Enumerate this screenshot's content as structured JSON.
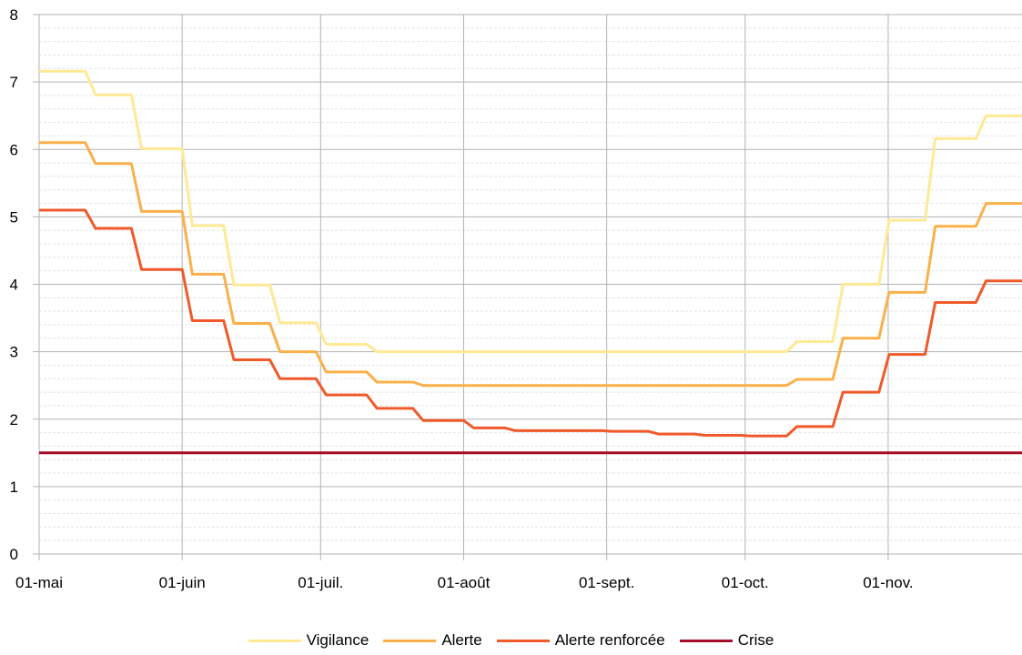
{
  "chart_data": {
    "type": "line",
    "title": "",
    "xlabel": "",
    "ylabel": "",
    "x_range": [
      "2023-05-01",
      "2023-11-30"
    ],
    "ylim": [
      0,
      8
    ],
    "y_ticks": [
      "0",
      "1",
      "2",
      "3",
      "4",
      "5",
      "6",
      "7",
      "8"
    ],
    "x_ticks": [
      {
        "date": "2023-05-01",
        "label": "01-mai"
      },
      {
        "date": "2023-06-01",
        "label": "01-juin"
      },
      {
        "date": "2023-07-01",
        "label": "01-juil."
      },
      {
        "date": "2023-08-01",
        "label": "01-août"
      },
      {
        "date": "2023-09-01",
        "label": "01-sept."
      },
      {
        "date": "2023-10-01",
        "label": "01-oct."
      },
      {
        "date": "2023-11-01",
        "label": "01-nov."
      }
    ],
    "grid": true,
    "legend_position": "bottom",
    "step_chart": true,
    "series": [
      {
        "name": "Vigilance",
        "color": "#ffe994",
        "points": [
          [
            "2023-05-01",
            7.16
          ],
          [
            "2023-05-11",
            6.81
          ],
          [
            "2023-05-21",
            6.01
          ],
          [
            "2023-06-01",
            4.87
          ],
          [
            "2023-06-10",
            3.99
          ],
          [
            "2023-06-20",
            3.43
          ],
          [
            "2023-06-30",
            3.11
          ],
          [
            "2023-07-11",
            3.0
          ],
          [
            "2023-10-10",
            3.15
          ],
          [
            "2023-10-20",
            4.0
          ],
          [
            "2023-10-30",
            4.95
          ],
          [
            "2023-11-09",
            6.16
          ],
          [
            "2023-11-20",
            6.5
          ],
          [
            "2023-11-30",
            6.5
          ]
        ]
      },
      {
        "name": "Alerte",
        "color": "#fbb04a",
        "points": [
          [
            "2023-05-01",
            6.1
          ],
          [
            "2023-05-11",
            5.79
          ],
          [
            "2023-05-21",
            5.08
          ],
          [
            "2023-06-01",
            4.15
          ],
          [
            "2023-06-10",
            3.42
          ],
          [
            "2023-06-20",
            3.0
          ],
          [
            "2023-06-30",
            2.7
          ],
          [
            "2023-07-11",
            2.55
          ],
          [
            "2023-07-21",
            2.5
          ],
          [
            "2023-10-10",
            2.59
          ],
          [
            "2023-10-20",
            3.2
          ],
          [
            "2023-10-30",
            3.88
          ],
          [
            "2023-11-09",
            4.86
          ],
          [
            "2023-11-20",
            5.2
          ],
          [
            "2023-11-30",
            5.2
          ]
        ]
      },
      {
        "name": "Alerte renforcée",
        "color": "#f05a2a",
        "points": [
          [
            "2023-05-01",
            5.1
          ],
          [
            "2023-05-11",
            4.83
          ],
          [
            "2023-05-21",
            4.22
          ],
          [
            "2023-06-01",
            3.46
          ],
          [
            "2023-06-10",
            2.88
          ],
          [
            "2023-06-20",
            2.6
          ],
          [
            "2023-06-30",
            2.36
          ],
          [
            "2023-07-11",
            2.16
          ],
          [
            "2023-07-21",
            1.98
          ],
          [
            "2023-08-01",
            1.87
          ],
          [
            "2023-08-10",
            1.83
          ],
          [
            "2023-08-31",
            1.82
          ],
          [
            "2023-09-10",
            1.78
          ],
          [
            "2023-09-20",
            1.76
          ],
          [
            "2023-09-30",
            1.75
          ],
          [
            "2023-10-10",
            1.89
          ],
          [
            "2023-10-20",
            2.4
          ],
          [
            "2023-10-30",
            2.96
          ],
          [
            "2023-11-09",
            3.73
          ],
          [
            "2023-11-20",
            4.05
          ],
          [
            "2023-11-30",
            4.05
          ]
        ]
      },
      {
        "name": "Crise",
        "color": "#a50c2a",
        "points": [
          [
            "2023-05-01",
            1.5
          ],
          [
            "2023-11-30",
            1.5
          ]
        ]
      }
    ]
  }
}
